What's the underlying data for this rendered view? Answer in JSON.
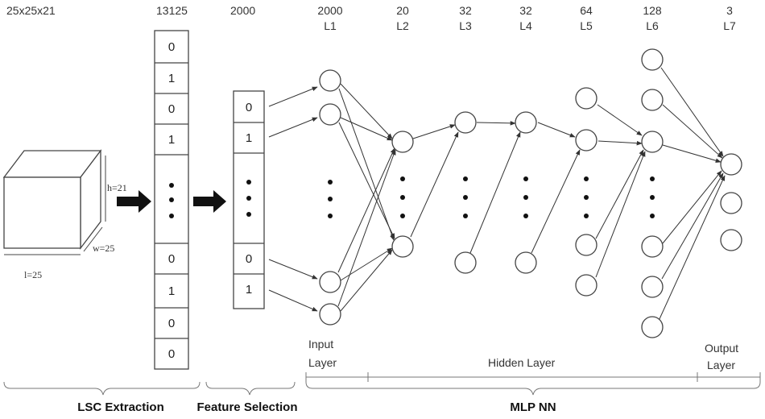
{
  "cube": {
    "label": "25x25x21",
    "h_label": "h=21",
    "w_label": "w=25",
    "l_label": "l=25"
  },
  "lsc_vector": {
    "size_label": "13125",
    "top_cells": [
      "0",
      "1",
      "0",
      "1"
    ],
    "bottom_cells": [
      "0",
      "1",
      "0",
      "0"
    ]
  },
  "fs_vector": {
    "size_label": "2000",
    "top_cells": [
      "0",
      "1"
    ],
    "bottom_cells": [
      "0",
      "1"
    ]
  },
  "layers": [
    {
      "count": "2000",
      "name": "L1"
    },
    {
      "count": "20",
      "name": "L2"
    },
    {
      "count": "32",
      "name": "L3"
    },
    {
      "count": "32",
      "name": "L4"
    },
    {
      "count": "64",
      "name": "L5"
    },
    {
      "count": "128",
      "name": "L6"
    },
    {
      "count": "3",
      "name": "L7"
    }
  ],
  "group_labels": {
    "input": [
      "Input",
      "Layer"
    ],
    "hidden": "Hidden Layer",
    "output": [
      "Output",
      "Layer"
    ]
  },
  "stage_labels": {
    "lsc": "LSC Extraction",
    "feature": "Feature Selection",
    "mlp": "MLP NN"
  },
  "colors": {
    "stroke": "#444444",
    "arrow": "#111111"
  }
}
